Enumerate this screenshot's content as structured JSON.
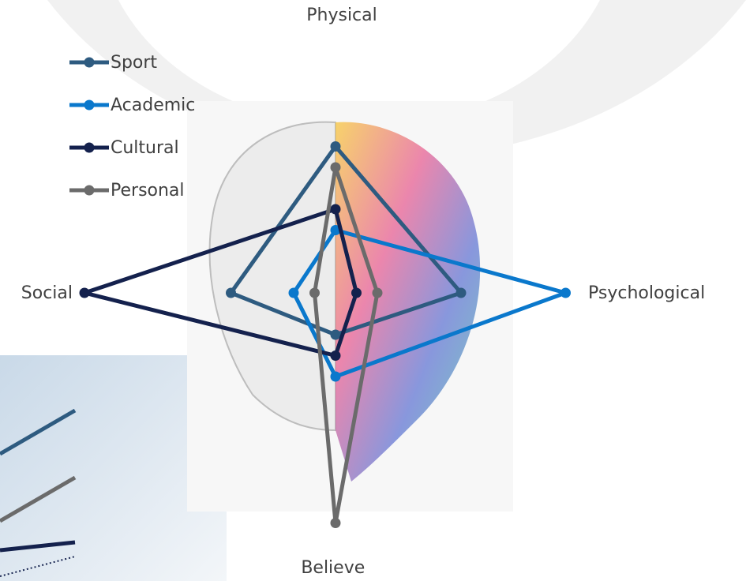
{
  "chart_data": {
    "type": "radar",
    "axes": [
      "Physical",
      "Psychological",
      "Believe",
      "Social"
    ],
    "rlim": [
      0,
      12
    ],
    "series": [
      {
        "name": "Sport",
        "color": "#2e5b80",
        "values": [
          7,
          6,
          2,
          5
        ]
      },
      {
        "name": "Academic",
        "color": "#0a78cc",
        "values": [
          3,
          11,
          4,
          2
        ]
      },
      {
        "name": "Cultural",
        "color": "#14214d",
        "values": [
          4,
          1,
          3,
          12
        ]
      },
      {
        "name": "Personal",
        "color": "#6b6b6b",
        "values": [
          6,
          2,
          11,
          1
        ]
      }
    ],
    "legend": "top-left"
  }
}
